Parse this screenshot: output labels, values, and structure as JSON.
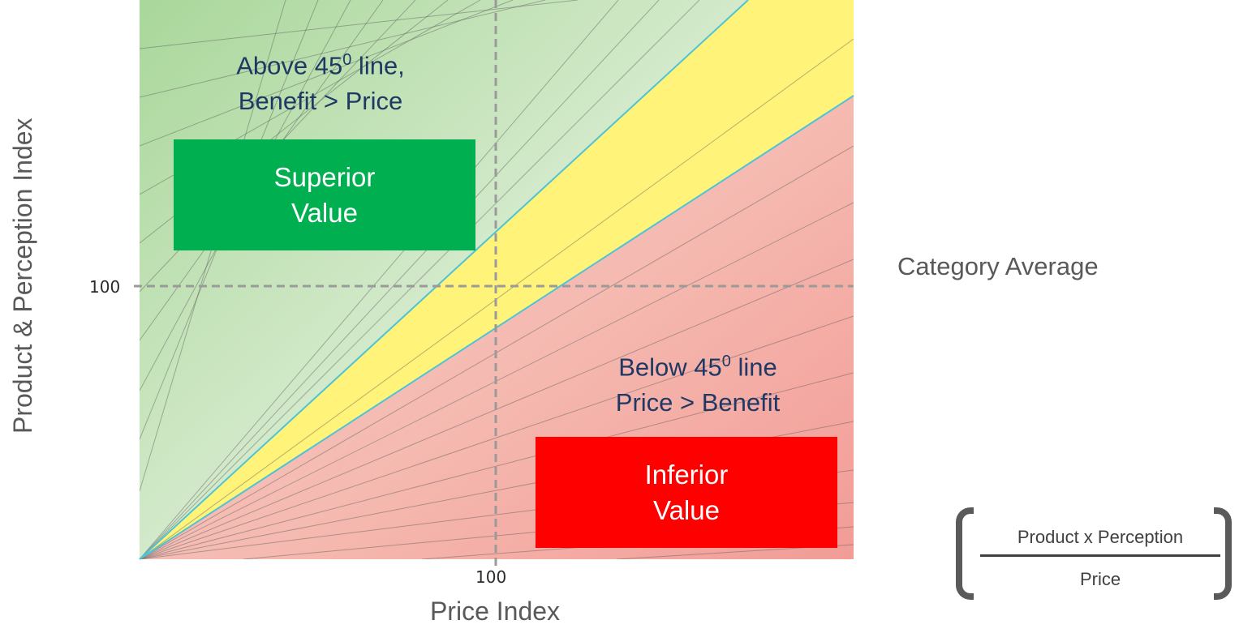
{
  "axes": {
    "y_title": "Product & Perception Index",
    "x_title": "Price Index",
    "y_tick": "100",
    "x_tick": "100"
  },
  "annotations": {
    "above_line1_pre": "Above 45",
    "above_line1_sup": "0",
    "above_line1_post": " line,",
    "above_line2": "Benefit > Price",
    "below_line1_pre": "Below 45",
    "below_line1_sup": "0",
    "below_line1_post": " line",
    "below_line2": "Price > Benefit"
  },
  "boxes": {
    "superior": {
      "line1": "Superior",
      "line2": "Value",
      "color": "#00b050"
    },
    "inferior": {
      "line1": "Inferior",
      "line2": "Value",
      "color": "#ff0000"
    }
  },
  "category_average": "Category Average",
  "formula": {
    "numerator": "Product x Perception",
    "denominator": "Price"
  },
  "colors": {
    "green_zone": "#a9d79a",
    "yellow_band": "#fff37a",
    "red_zone": "#f5a9a0",
    "boundary_line": "#4fc3d6",
    "annotation_text": "#1f3864"
  }
}
